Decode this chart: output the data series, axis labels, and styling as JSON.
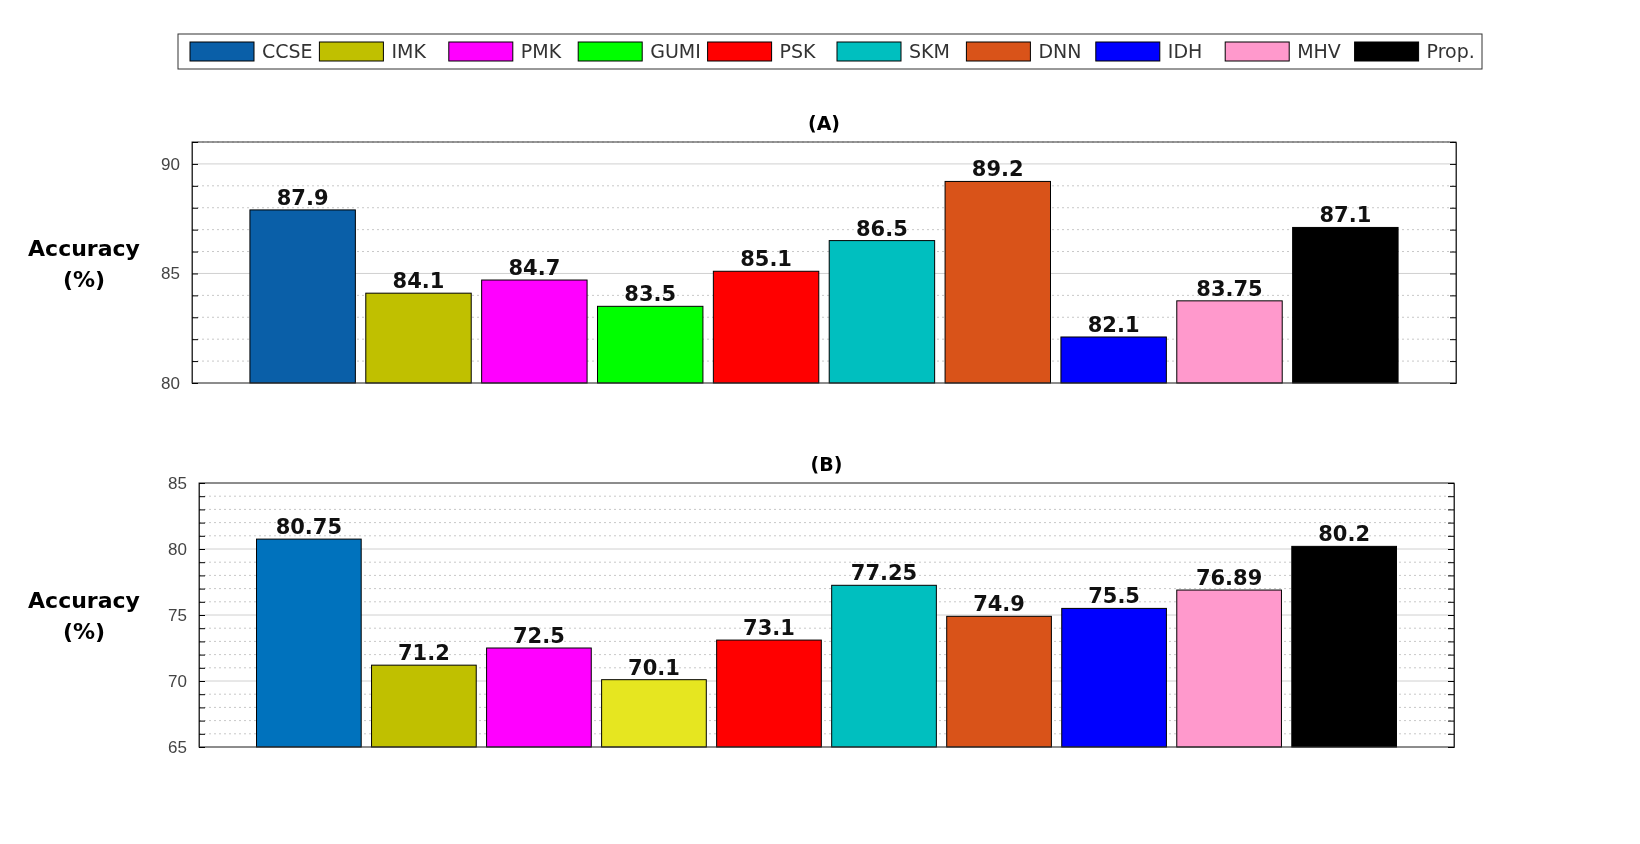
{
  "chart_data": [
    {
      "type": "bar",
      "title": "(A)",
      "ylabel": "Accuracy\n(%)",
      "categories": [
        null,
        null,
        null,
        null,
        null,
        null,
        null,
        null,
        null,
        null
      ],
      "series": [
        {
          "name": "CCSE",
          "color": "#0a5fa8",
          "values": [
            87.9,
            null,
            null,
            null,
            null,
            null,
            null,
            null,
            null,
            null
          ]
        },
        {
          "name": "IMK",
          "color": "#c0c000",
          "values": [
            null,
            84.1,
            null,
            null,
            null,
            null,
            null,
            null,
            null,
            null
          ]
        },
        {
          "name": "PMK",
          "color": "#ff00ff",
          "values": [
            null,
            null,
            84.7,
            null,
            null,
            null,
            null,
            null,
            null,
            null
          ]
        },
        {
          "name": "GUMI",
          "color": "#00ff00",
          "values": [
            null,
            null,
            null,
            83.5,
            null,
            null,
            null,
            null,
            null,
            null
          ]
        },
        {
          "name": "PSK",
          "color": "#ff0000",
          "values": [
            null,
            null,
            null,
            null,
            85.1,
            null,
            null,
            null,
            null,
            null
          ]
        },
        {
          "name": "SKM",
          "color": "#00bfbf",
          "values": [
            null,
            null,
            null,
            null,
            null,
            86.5,
            null,
            null,
            null,
            null
          ]
        },
        {
          "name": "DNN",
          "color": "#d95319",
          "values": [
            null,
            null,
            null,
            null,
            null,
            null,
            89.2,
            null,
            null,
            null
          ]
        },
        {
          "name": "IDH",
          "color": "#0000ff",
          "values": [
            null,
            null,
            null,
            null,
            null,
            null,
            null,
            82.1,
            null,
            null
          ]
        },
        {
          "name": "MHV",
          "color": "#ff99cc",
          "values": [
            null,
            null,
            null,
            null,
            null,
            null,
            null,
            null,
            83.75,
            null
          ]
        },
        {
          "name": "Prop.",
          "color": "#000000",
          "values": [
            null,
            null,
            null,
            null,
            null,
            null,
            null,
            null,
            null,
            87.1
          ]
        }
      ],
      "ylim": [
        80,
        91
      ],
      "yticks": [
        80,
        {
          "value": 81,
          "label": null
        },
        {
          "value": 82,
          "label": null
        },
        {
          "value": 83,
          "label": null
        },
        {
          "value": 84,
          "label": null
        },
        85,
        {
          "value": 86,
          "label": null
        },
        {
          "value": 87,
          "label": null
        },
        {
          "value": 88,
          "label": null
        },
        {
          "value": 89,
          "label": null
        },
        90,
        {
          "value": 91,
          "label": null
        }
      ],
      "grid": true,
      "legend": "top",
      "data_labels": true
    },
    {
      "type": "bar",
      "title": "(B)",
      "ylabel": "Accuracy\n(%)",
      "categories": [
        null,
        null,
        null,
        null,
        null,
        null,
        null,
        null,
        null,
        null
      ],
      "values": [
        80.75,
        71.2,
        72.5,
        70.1,
        73.1,
        77.25,
        74.9,
        75.5,
        76.89,
        80.2
      ],
      "colors": [
        "#0072bd",
        "#c0c000",
        "#ff00ff",
        "#e6e620",
        "#ff0000",
        "#00bfbf",
        "#d95319",
        "#0000ff",
        "#ff99cc",
        "#000000"
      ],
      "ylim": [
        65,
        85
      ],
      "yticks": [
        65,
        {
          "value": 66,
          "label": null
        },
        {
          "value": 67,
          "label": null
        },
        {
          "value": 68,
          "label": null
        },
        {
          "value": 69,
          "label": null
        },
        70,
        {
          "value": 71,
          "label": null
        },
        {
          "value": 72,
          "label": null
        },
        {
          "value": 73,
          "label": null
        },
        {
          "value": 74,
          "label": null
        },
        75,
        {
          "value": 76,
          "label": null
        },
        {
          "value": 77,
          "label": null
        },
        {
          "value": 78,
          "label": null
        },
        {
          "value": 79,
          "label": null
        },
        80,
        {
          "value": 81,
          "label": null
        },
        {
          "value": 82,
          "label": null
        },
        {
          "value": 83,
          "label": null
        },
        {
          "value": 84,
          "label": null
        },
        85
      ],
      "grid": true,
      "data_labels": true
    }
  ]
}
